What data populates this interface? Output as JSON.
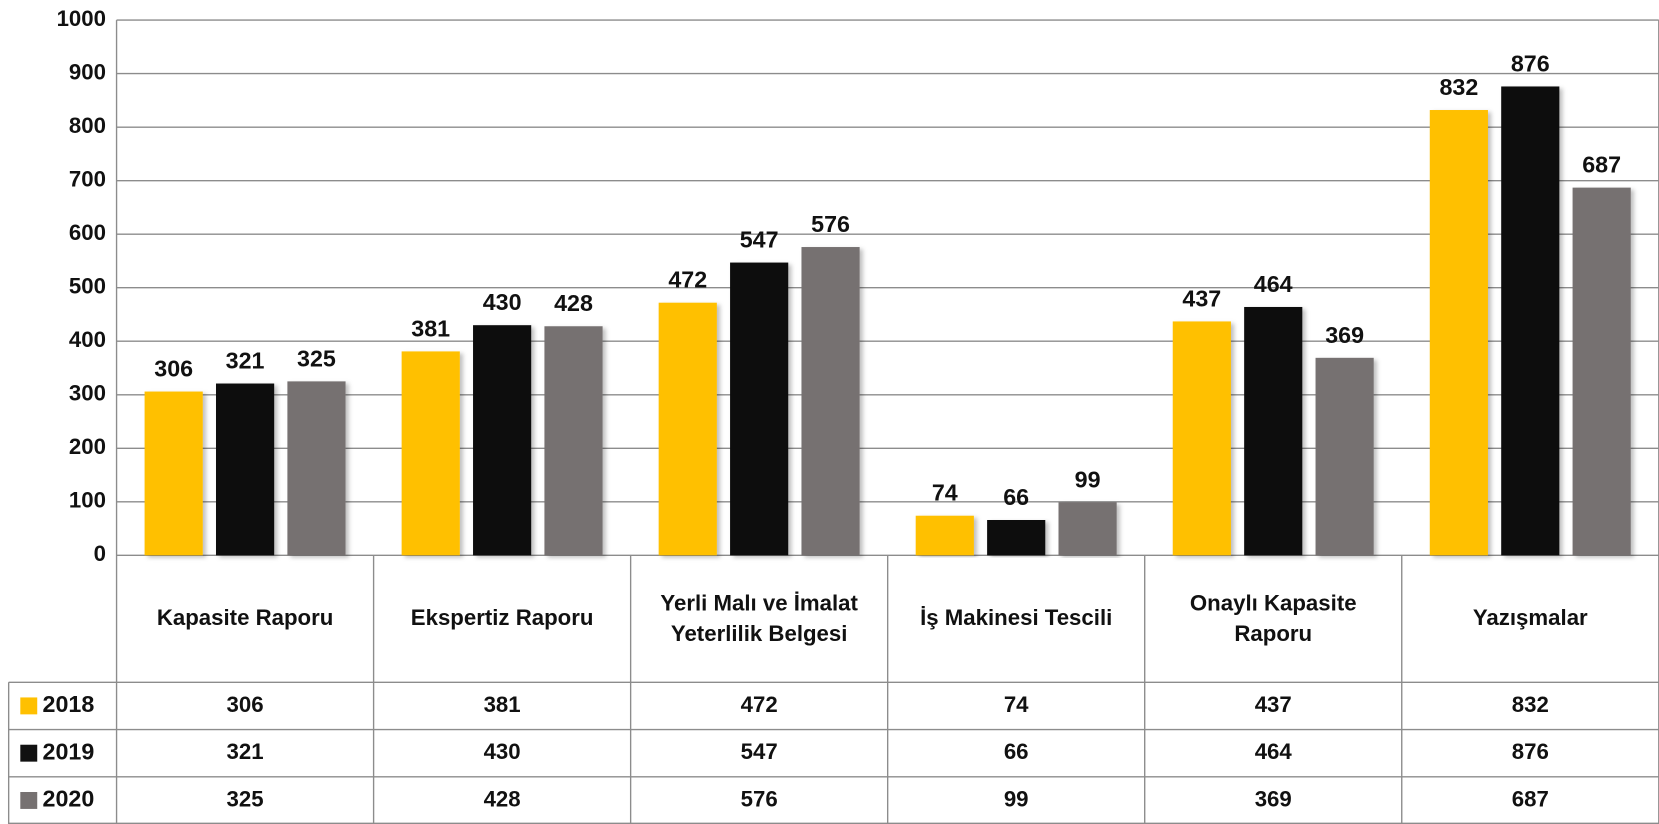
{
  "chart_data": {
    "type": "bar",
    "categories": [
      "Kapasite Raporu",
      "Ekspertiz Raporu",
      "Yerli Malı ve İmalat Yeterlilik Belgesi",
      "İş Makinesi Tescili",
      "Onaylı Kapasite Raporu",
      "Yazışmalar"
    ],
    "series": [
      {
        "name": "2018",
        "color": "#FFC000",
        "values": [
          306,
          381,
          472,
          74,
          437,
          832
        ]
      },
      {
        "name": "2019",
        "color": "#111111",
        "values": [
          321,
          430,
          547,
          66,
          464,
          876
        ]
      },
      {
        "name": "2020",
        "color": "#767171",
        "values": [
          325,
          428,
          576,
          99,
          369,
          687
        ]
      }
    ],
    "ylim": [
      0,
      1000
    ],
    "yticks": [
      0,
      100,
      200,
      300,
      400,
      500,
      600,
      700,
      800,
      900,
      1000
    ],
    "grid": true
  }
}
